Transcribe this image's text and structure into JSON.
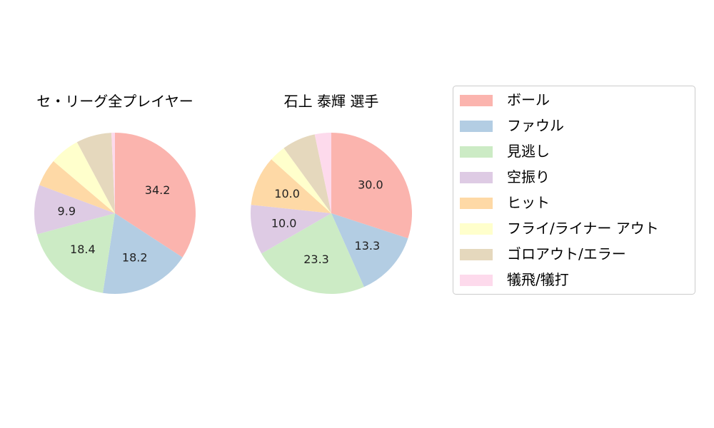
{
  "chart_data": [
    {
      "type": "pie",
      "title": "セ・リーグ全プレイヤー",
      "categories": [
        "ボール",
        "ファウル",
        "見逃し",
        "空振り",
        "ヒット",
        "フライ/ライナー アウト",
        "ゴロアウト/エラー",
        "犠飛/犠打"
      ],
      "values": [
        34.2,
        18.2,
        18.4,
        9.9,
        5.5,
        6.0,
        7.1,
        0.7
      ],
      "data_labels": [
        "34.2",
        "18.2",
        "18.4",
        "9.9",
        "",
        "",
        "",
        ""
      ],
      "start_angle": "12 o'clock",
      "direction": "clockwise"
    },
    {
      "type": "pie",
      "title": "石上 泰輝  選手",
      "categories": [
        "ボール",
        "ファウル",
        "見逃し",
        "空振り",
        "ヒット",
        "フライ/ライナー アウト",
        "ゴロアウト/エラー",
        "犠飛/犠打"
      ],
      "values": [
        30.0,
        13.3,
        23.3,
        10.0,
        10.0,
        3.3,
        6.7,
        3.3
      ],
      "data_labels": [
        "30.0",
        "13.3",
        "23.3",
        "10.0",
        "10.0",
        "",
        "",
        ""
      ],
      "start_angle": "12 o'clock",
      "direction": "clockwise"
    }
  ],
  "legend": {
    "placement": "right",
    "items": [
      {
        "label": "ボール",
        "color": "#fbb4ae"
      },
      {
        "label": "ファウル",
        "color": "#b3cde3"
      },
      {
        "label": "見逃し",
        "color": "#ccebc5"
      },
      {
        "label": "空振り",
        "color": "#decbe4"
      },
      {
        "label": "ヒット",
        "color": "#fed9a6"
      },
      {
        "label": "フライ/ライナー アウト",
        "color": "#ffffcc"
      },
      {
        "label": "ゴロアウト/エラー",
        "color": "#e5d8bd"
      },
      {
        "label": "犠飛/犠打",
        "color": "#fddaec"
      }
    ]
  }
}
